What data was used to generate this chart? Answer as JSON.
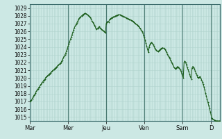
{
  "bg_color": "#cce8e4",
  "grid_color_minor": "#b0d4ce",
  "grid_color_major": "#88b8b0",
  "line_color": "#1a5c1a",
  "ylim_min": 1014.5,
  "ylim_max": 1029.5,
  "yticks": [
    1015,
    1016,
    1017,
    1018,
    1019,
    1020,
    1021,
    1022,
    1023,
    1024,
    1025,
    1026,
    1027,
    1028,
    1029
  ],
  "day_labels": [
    "Mar",
    "Mer",
    "Jeu",
    "Ven",
    "Sam",
    "D"
  ],
  "day_positions": [
    0,
    48,
    96,
    144,
    192,
    228
  ],
  "n_points": 240,
  "pressure_values": [
    1017.0,
    1017.1,
    1017.2,
    1017.4,
    1017.6,
    1017.8,
    1017.9,
    1018.1,
    1018.3,
    1018.5,
    1018.6,
    1018.8,
    1018.9,
    1019.1,
    1019.2,
    1019.4,
    1019.5,
    1019.7,
    1019.8,
    1019.9,
    1020.1,
    1020.2,
    1020.3,
    1020.4,
    1020.5,
    1020.6,
    1020.7,
    1020.8,
    1020.9,
    1021.0,
    1021.1,
    1021.2,
    1021.3,
    1021.4,
    1021.5,
    1021.6,
    1021.7,
    1021.8,
    1021.9,
    1022.0,
    1022.2,
    1022.4,
    1022.6,
    1022.8,
    1023.0,
    1023.2,
    1023.5,
    1023.8,
    1024.1,
    1024.4,
    1024.7,
    1025.0,
    1025.3,
    1025.6,
    1025.9,
    1026.2,
    1026.5,
    1026.7,
    1026.9,
    1027.1,
    1027.3,
    1027.5,
    1027.7,
    1027.8,
    1027.9,
    1028.0,
    1028.1,
    1028.2,
    1028.25,
    1028.3,
    1028.3,
    1028.25,
    1028.2,
    1028.1,
    1028.0,
    1027.9,
    1027.8,
    1027.6,
    1027.4,
    1027.2,
    1027.0,
    1026.8,
    1026.6,
    1026.4,
    1026.3,
    1026.4,
    1026.5,
    1026.6,
    1026.5,
    1026.4,
    1026.3,
    1026.2,
    1026.1,
    1026.0,
    1025.9,
    1025.8,
    1027.0,
    1027.2,
    1027.3,
    1027.2,
    1027.5,
    1027.6,
    1027.7,
    1027.75,
    1027.8,
    1027.85,
    1027.9,
    1027.95,
    1028.0,
    1028.05,
    1028.1,
    1028.12,
    1028.15,
    1028.15,
    1028.1,
    1028.05,
    1028.0,
    1027.95,
    1027.9,
    1027.85,
    1027.8,
    1027.75,
    1027.7,
    1027.65,
    1027.6,
    1027.55,
    1027.5,
    1027.45,
    1027.4,
    1027.35,
    1027.3,
    1027.2,
    1027.1,
    1027.0,
    1026.9,
    1026.8,
    1026.7,
    1026.6,
    1026.5,
    1026.4,
    1026.2,
    1026.0,
    1025.8,
    1025.5,
    1025.2,
    1024.9,
    1024.5,
    1024.1,
    1023.7,
    1023.3,
    1024.0,
    1024.3,
    1024.5,
    1024.6,
    1024.5,
    1024.3,
    1024.1,
    1023.9,
    1023.7,
    1023.6,
    1023.5,
    1023.4,
    1023.5,
    1023.6,
    1023.7,
    1023.8,
    1023.85,
    1023.9,
    1023.85,
    1023.8,
    1023.7,
    1023.5,
    1023.3,
    1023.1,
    1022.9,
    1022.7,
    1022.5,
    1022.3,
    1022.1,
    1021.9,
    1021.7,
    1021.5,
    1021.3,
    1021.2,
    1021.3,
    1021.4,
    1021.5,
    1021.4,
    1021.3,
    1021.1,
    1020.9,
    1020.6,
    1020.3,
    1020.0,
    1022.0,
    1022.2,
    1022.0,
    1021.7,
    1021.4,
    1021.1,
    1020.8,
    1020.5,
    1020.2,
    1019.9,
    1021.3,
    1021.5,
    1021.4,
    1021.2,
    1020.9,
    1020.7,
    1020.4,
    1020.1,
    1020.0,
    1020.1,
    1020.2,
    1020.0,
    1019.8,
    1019.5,
    1019.2,
    1018.9,
    1018.5,
    1018.1,
    1017.7,
    1017.3,
    1016.9,
    1016.5,
    1016.1,
    1015.7,
    1015.3,
    1014.9,
    1014.8,
    1014.7,
    1014.6,
    1014.55,
    1014.5,
    1014.5,
    1014.5,
    1014.5,
    1014.5,
    1014.5
  ]
}
